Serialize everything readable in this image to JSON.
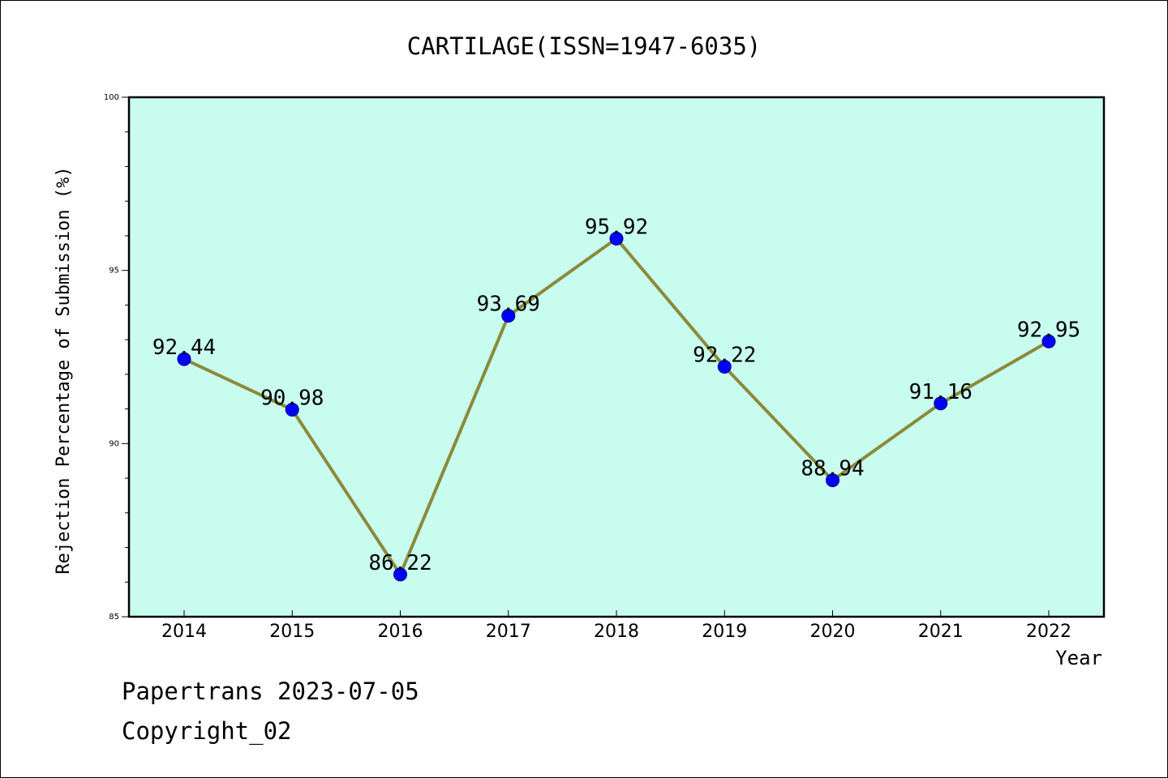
{
  "chart_data": {
    "type": "line",
    "title": "CARTILAGE(ISSN=1947-6035)",
    "xlabel": "Year",
    "ylabel": "Rejection Percentage of Submission (%)",
    "categories": [
      "2014",
      "2015",
      "2016",
      "2017",
      "2018",
      "2019",
      "2020",
      "2021",
      "2022"
    ],
    "values": [
      92.44,
      90.98,
      86.22,
      93.69,
      95.92,
      92.22,
      88.94,
      91.16,
      92.95
    ],
    "value_labels": [
      "92.44",
      "90.98",
      "86.22",
      "93.69",
      "95.92",
      "92.22",
      "88.94",
      "91.16",
      "92.95"
    ],
    "ylim": [
      85,
      100
    ],
    "yticks": [
      85,
      90,
      95,
      100
    ],
    "grid": false,
    "plot_background": "#c8fcee",
    "line_color": "#8b8a3a",
    "marker_color": "#0000ff"
  },
  "footer": {
    "line1": "Papertrans 2023-07-05",
    "line2": "Copyright_02"
  }
}
